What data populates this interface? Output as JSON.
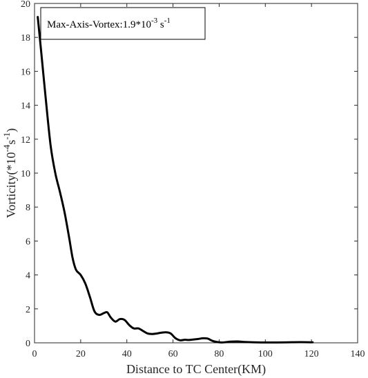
{
  "chart_data": {
    "type": "line",
    "xlabel": "Distance to TC Center(KM)",
    "ylabel": {
      "main": "Vorticity(*10",
      "exp1": "-4",
      "mid": "s",
      "exp2": "-1",
      "end": ")"
    },
    "xlim": [
      0,
      140
    ],
    "ylim": [
      0,
      20
    ],
    "xticks": [
      "0",
      "20",
      "40",
      "60",
      "80",
      "100",
      "120",
      "140"
    ],
    "yticks": [
      "0",
      "2",
      "4",
      "6",
      "8",
      "10",
      "12",
      "14",
      "16",
      "18",
      "20"
    ],
    "annotation": {
      "prefix": "Max-Axis-Vortex:1.9*10",
      "exp1": "-3",
      "mid": " s",
      "exp2": "-1"
    },
    "series": [
      {
        "color": "#000000",
        "x": [
          1.4,
          3,
          5,
          7,
          9,
          11,
          13,
          15,
          16.5,
          18,
          20,
          22,
          24,
          26,
          28,
          30,
          31.5,
          33,
          35,
          37,
          39,
          41,
          43,
          45,
          47,
          49,
          51,
          53,
          55,
          57,
          59,
          61,
          63,
          65,
          67,
          69,
          71,
          73,
          75,
          77,
          79,
          81,
          83,
          85,
          88,
          91,
          95,
          100,
          105,
          110,
          115,
          120.5
        ],
        "y": [
          19.2,
          17.0,
          14.2,
          11.6,
          10.0,
          8.9,
          7.7,
          6.2,
          5.0,
          4.3,
          4.0,
          3.5,
          2.7,
          1.85,
          1.65,
          1.75,
          1.8,
          1.5,
          1.25,
          1.4,
          1.35,
          1.05,
          0.85,
          0.85,
          0.7,
          0.55,
          0.52,
          0.55,
          0.6,
          0.62,
          0.55,
          0.28,
          0.15,
          0.18,
          0.17,
          0.2,
          0.23,
          0.27,
          0.25,
          0.12,
          0.05,
          0.02,
          0.04,
          0.07,
          0.08,
          0.05,
          0.03,
          0.02,
          0.02,
          0.03,
          0.04,
          0.03
        ]
      }
    ]
  }
}
